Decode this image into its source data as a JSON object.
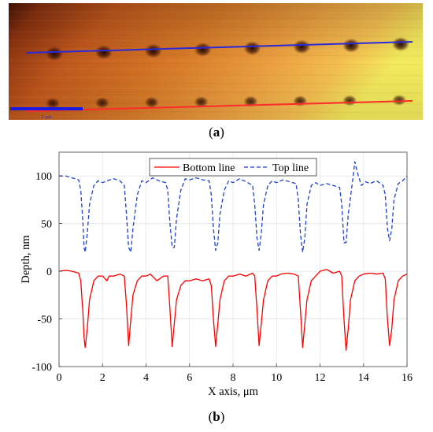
{
  "panel_a": {
    "caption_label": "a",
    "scale_bar_text": "2 µm",
    "colors": {
      "afm_dark": "#5a1a06",
      "afm_mid": "#c8641a",
      "afm_light": "#f4b84a",
      "afm_highlight": "#f2ef5a",
      "top_line": "#2a2ad8",
      "bottom_line": "#ff2a2a",
      "scale_bar": "#1a1ae0"
    },
    "indent_count": 8
  },
  "panel_b": {
    "caption_label": "b"
  },
  "chart_data": {
    "type": "line",
    "xlabel": "X axis, μm",
    "ylabel": "Depth, nm",
    "xlim": [
      0,
      16
    ],
    "ylim": [
      -100,
      125
    ],
    "xticks": [
      0,
      2,
      4,
      6,
      8,
      10,
      12,
      14,
      16
    ],
    "yticks": [
      -100,
      -50,
      0,
      50,
      100
    ],
    "grid": true,
    "legend_position": "top-center",
    "series": [
      {
        "name": "Bottom line",
        "style": "solid",
        "color": "#ff0000",
        "x": [
          0.0,
          0.3,
          0.6,
          0.9,
          1.0,
          1.1,
          1.15,
          1.2,
          1.3,
          1.4,
          1.6,
          1.8,
          2.0,
          2.2,
          2.3,
          2.5,
          2.8,
          3.0,
          3.1,
          3.2,
          3.3,
          3.4,
          3.6,
          3.8,
          4.0,
          4.2,
          4.5,
          4.8,
          5.0,
          5.1,
          5.2,
          5.3,
          5.4,
          5.6,
          5.8,
          6.0,
          6.3,
          6.6,
          6.9,
          7.0,
          7.1,
          7.2,
          7.3,
          7.4,
          7.6,
          7.8,
          8.0,
          8.3,
          8.6,
          8.9,
          9.0,
          9.1,
          9.2,
          9.3,
          9.4,
          9.6,
          9.8,
          10.0,
          10.2,
          10.5,
          10.8,
          11.0,
          11.1,
          11.2,
          11.3,
          11.4,
          11.6,
          11.8,
          12.0,
          12.3,
          12.6,
          12.9,
          13.0,
          13.1,
          13.2,
          13.3,
          13.4,
          13.6,
          13.8,
          14.0,
          14.3,
          14.6,
          14.9,
          15.0,
          15.1,
          15.2,
          15.3,
          15.4,
          15.6,
          15.8,
          16.0
        ],
        "y": [
          0,
          1,
          0,
          -2,
          -10,
          -45,
          -70,
          -80,
          -60,
          -30,
          -10,
          -5,
          -5,
          -10,
          -5,
          -5,
          -3,
          -5,
          -35,
          -78,
          -50,
          -25,
          -10,
          -5,
          -5,
          -3,
          -10,
          -5,
          -5,
          -40,
          -79,
          -55,
          -30,
          -15,
          -10,
          -10,
          -8,
          -10,
          -8,
          -15,
          -50,
          -79,
          -55,
          -30,
          -10,
          -5,
          -5,
          -3,
          -5,
          -2,
          -5,
          -40,
          -78,
          -55,
          -30,
          -10,
          -5,
          -5,
          -3,
          -2,
          -3,
          -5,
          -40,
          -80,
          -55,
          -30,
          -10,
          -5,
          0,
          2,
          -2,
          0,
          -5,
          -50,
          -83,
          -60,
          -30,
          -10,
          -5,
          -3,
          -2,
          -3,
          -2,
          -8,
          -50,
          -78,
          -60,
          -30,
          -10,
          -5,
          -3
        ]
      },
      {
        "name": "Top line",
        "style": "dashed",
        "color": "#1f3fd8",
        "x": [
          0.0,
          0.3,
          0.6,
          0.9,
          1.0,
          1.1,
          1.15,
          1.2,
          1.3,
          1.4,
          1.6,
          1.8,
          2.0,
          2.2,
          2.5,
          2.8,
          3.0,
          3.1,
          3.2,
          3.3,
          3.4,
          3.6,
          3.8,
          4.0,
          4.3,
          4.6,
          4.9,
          5.0,
          5.1,
          5.2,
          5.3,
          5.4,
          5.6,
          5.8,
          6.0,
          6.3,
          6.6,
          6.9,
          7.0,
          7.1,
          7.2,
          7.3,
          7.4,
          7.6,
          7.8,
          8.0,
          8.3,
          8.6,
          8.9,
          9.0,
          9.1,
          9.2,
          9.3,
          9.4,
          9.6,
          9.8,
          10.0,
          10.3,
          10.6,
          10.9,
          11.0,
          11.1,
          11.2,
          11.3,
          11.4,
          11.6,
          11.8,
          12.0,
          12.3,
          12.6,
          12.9,
          13.0,
          13.1,
          13.2,
          13.3,
          13.5,
          13.6,
          13.7,
          13.9,
          14.1,
          14.3,
          14.6,
          14.9,
          15.0,
          15.1,
          15.2,
          15.3,
          15.4,
          15.6,
          15.8,
          16.0
        ],
        "y": [
          100,
          100,
          98,
          96,
          85,
          50,
          25,
          20,
          40,
          70,
          90,
          95,
          93,
          95,
          97,
          95,
          90,
          60,
          25,
          20,
          45,
          80,
          95,
          93,
          98,
          95,
          93,
          85,
          50,
          25,
          25,
          55,
          85,
          97,
          96,
          98,
          96,
          95,
          80,
          45,
          22,
          30,
          60,
          85,
          95,
          93,
          97,
          94,
          90,
          70,
          35,
          22,
          40,
          70,
          90,
          95,
          93,
          96,
          94,
          92,
          75,
          40,
          20,
          35,
          70,
          90,
          93,
          90,
          92,
          90,
          88,
          70,
          30,
          30,
          60,
          95,
          115,
          105,
          90,
          94,
          92,
          95,
          90,
          80,
          45,
          32,
          45,
          75,
          92,
          95,
          100
        ]
      }
    ]
  }
}
